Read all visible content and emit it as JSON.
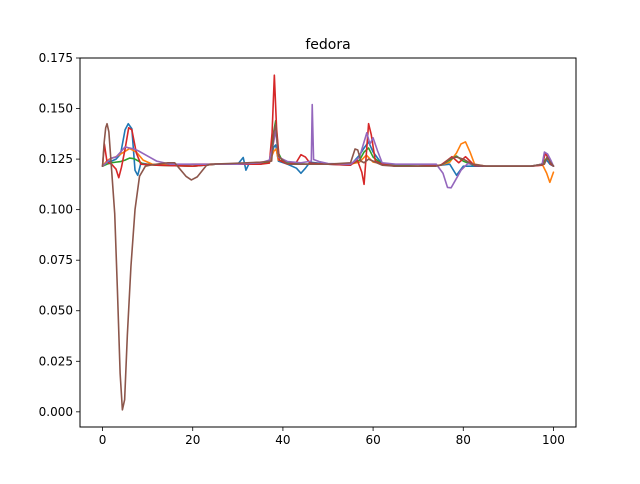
{
  "chart_data": {
    "type": "line",
    "title": "fedora",
    "xlabel": "",
    "ylabel": "",
    "xlim": [
      -5,
      105
    ],
    "ylim": [
      -0.0075,
      0.175
    ],
    "xticks": [
      0,
      20,
      40,
      60,
      80,
      100
    ],
    "xtick_labels": [
      "0",
      "20",
      "40",
      "60",
      "80",
      "100"
    ],
    "yticks": [
      0.0,
      0.025,
      0.05,
      0.075,
      0.1,
      0.125,
      0.15,
      0.175
    ],
    "ytick_labels": [
      "0.000",
      "0.025",
      "0.050",
      "0.075",
      "0.100",
      "0.125",
      "0.150",
      "0.175"
    ],
    "grid": false,
    "legend": "none",
    "series": [
      {
        "color": "#1f77b4",
        "points": [
          [
            0,
            0.1215
          ],
          [
            1,
            0.1235
          ],
          [
            2,
            0.124
          ],
          [
            3,
            0.125
          ],
          [
            4,
            0.1275
          ],
          [
            5,
            0.1395
          ],
          [
            5.7,
            0.1425
          ],
          [
            6.5,
            0.14
          ],
          [
            7.2,
            0.1195
          ],
          [
            7.8,
            0.117
          ],
          [
            8.5,
            0.123
          ],
          [
            10,
            0.1225
          ],
          [
            15,
            0.122
          ],
          [
            20,
            0.1215
          ],
          [
            25,
            0.1225
          ],
          [
            30,
            0.1225
          ],
          [
            31.2,
            0.1258
          ],
          [
            31.8,
            0.1195
          ],
          [
            32.5,
            0.1228
          ],
          [
            35,
            0.1225
          ],
          [
            37,
            0.124
          ],
          [
            38,
            0.131
          ],
          [
            38.4,
            0.132
          ],
          [
            39,
            0.124
          ],
          [
            41,
            0.1225
          ],
          [
            43,
            0.1205
          ],
          [
            44,
            0.118
          ],
          [
            45,
            0.1205
          ],
          [
            46,
            0.1235
          ],
          [
            50,
            0.1225
          ],
          [
            55,
            0.122
          ],
          [
            57,
            0.127
          ],
          [
            58,
            0.1305
          ],
          [
            59,
            0.1335
          ],
          [
            60,
            0.1285
          ],
          [
            62,
            0.1225
          ],
          [
            65,
            0.1215
          ],
          [
            70,
            0.1215
          ],
          [
            75,
            0.122
          ],
          [
            77,
            0.1225
          ],
          [
            78.5,
            0.117
          ],
          [
            80,
            0.1215
          ],
          [
            85,
            0.1215
          ],
          [
            90,
            0.1215
          ],
          [
            95,
            0.1215
          ],
          [
            97,
            0.122
          ],
          [
            98.5,
            0.1245
          ],
          [
            99.2,
            0.1225
          ],
          [
            100,
            0.1215
          ]
        ]
      },
      {
        "color": "#ff7f0e",
        "points": [
          [
            0,
            0.1215
          ],
          [
            0.7,
            0.1235
          ],
          [
            1.5,
            0.125
          ],
          [
            3,
            0.1262
          ],
          [
            4.5,
            0.1282
          ],
          [
            6,
            0.1302
          ],
          [
            7.5,
            0.1285
          ],
          [
            9,
            0.1245
          ],
          [
            11,
            0.1225
          ],
          [
            15,
            0.122
          ],
          [
            20,
            0.1225
          ],
          [
            25,
            0.1225
          ],
          [
            30,
            0.1225
          ],
          [
            35,
            0.1225
          ],
          [
            37,
            0.1235
          ],
          [
            38,
            0.129
          ],
          [
            38.5,
            0.13
          ],
          [
            39,
            0.1245
          ],
          [
            42,
            0.1225
          ],
          [
            45,
            0.1225
          ],
          [
            50,
            0.1225
          ],
          [
            55,
            0.1225
          ],
          [
            57,
            0.1235
          ],
          [
            58.5,
            0.127
          ],
          [
            60,
            0.1235
          ],
          [
            65,
            0.1215
          ],
          [
            70,
            0.1215
          ],
          [
            75,
            0.122
          ],
          [
            77,
            0.1235
          ],
          [
            78.5,
            0.128
          ],
          [
            79.5,
            0.1325
          ],
          [
            80.5,
            0.1335
          ],
          [
            81.5,
            0.1285
          ],
          [
            82.5,
            0.1225
          ],
          [
            85,
            0.1215
          ],
          [
            90,
            0.1215
          ],
          [
            95,
            0.1215
          ],
          [
            97.5,
            0.1225
          ],
          [
            98.5,
            0.118
          ],
          [
            99.2,
            0.1135
          ],
          [
            100,
            0.1185
          ]
        ]
      },
      {
        "color": "#2ca02c",
        "points": [
          [
            0,
            0.1215
          ],
          [
            1,
            0.1225
          ],
          [
            2,
            0.1232
          ],
          [
            3,
            0.1235
          ],
          [
            4,
            0.1238
          ],
          [
            5,
            0.1245
          ],
          [
            6,
            0.1255
          ],
          [
            7,
            0.1252
          ],
          [
            8,
            0.124
          ],
          [
            9,
            0.1225
          ],
          [
            12,
            0.122
          ],
          [
            20,
            0.1215
          ],
          [
            25,
            0.1225
          ],
          [
            30,
            0.1225
          ],
          [
            35,
            0.1225
          ],
          [
            37,
            0.1235
          ],
          [
            38,
            0.139
          ],
          [
            38.4,
            0.144
          ],
          [
            39,
            0.128
          ],
          [
            40,
            0.1235
          ],
          [
            45,
            0.1225
          ],
          [
            50,
            0.1225
          ],
          [
            55,
            0.1225
          ],
          [
            57,
            0.1245
          ],
          [
            58,
            0.1285
          ],
          [
            59,
            0.1305
          ],
          [
            60,
            0.126
          ],
          [
            62,
            0.1225
          ],
          [
            65,
            0.122
          ],
          [
            70,
            0.1215
          ],
          [
            75,
            0.122
          ],
          [
            77,
            0.1245
          ],
          [
            78.5,
            0.1265
          ],
          [
            80,
            0.124
          ],
          [
            82,
            0.1222
          ],
          [
            85,
            0.1215
          ],
          [
            90,
            0.1215
          ],
          [
            95,
            0.1215
          ],
          [
            97.5,
            0.1225
          ],
          [
            98.5,
            0.1255
          ],
          [
            99.3,
            0.124
          ],
          [
            100,
            0.1215
          ]
        ]
      },
      {
        "color": "#d62728",
        "points": [
          [
            0,
            0.1215
          ],
          [
            0.4,
            0.1325
          ],
          [
            1,
            0.1235
          ],
          [
            2,
            0.1225
          ],
          [
            3,
            0.12
          ],
          [
            3.6,
            0.1158
          ],
          [
            4.2,
            0.121
          ],
          [
            5,
            0.13
          ],
          [
            5.8,
            0.1405
          ],
          [
            6.5,
            0.1395
          ],
          [
            7.5,
            0.128
          ],
          [
            8.5,
            0.1225
          ],
          [
            12,
            0.122
          ],
          [
            20,
            0.1215
          ],
          [
            25,
            0.1225
          ],
          [
            30,
            0.1225
          ],
          [
            35,
            0.1225
          ],
          [
            37,
            0.123
          ],
          [
            37.6,
            0.138
          ],
          [
            38.1,
            0.1665
          ],
          [
            38.6,
            0.14
          ],
          [
            39.2,
            0.1245
          ],
          [
            41,
            0.1225
          ],
          [
            43,
            0.1235
          ],
          [
            44,
            0.1272
          ],
          [
            45,
            0.126
          ],
          [
            46,
            0.123
          ],
          [
            50,
            0.1225
          ],
          [
            55,
            0.122
          ],
          [
            56.5,
            0.1245
          ],
          [
            57.5,
            0.1185
          ],
          [
            58,
            0.1125
          ],
          [
            58.5,
            0.1275
          ],
          [
            59,
            0.1425
          ],
          [
            59.6,
            0.137
          ],
          [
            60.5,
            0.124
          ],
          [
            62,
            0.1225
          ],
          [
            65,
            0.1215
          ],
          [
            70,
            0.1215
          ],
          [
            75,
            0.122
          ],
          [
            76.5,
            0.1245
          ],
          [
            77.5,
            0.1262
          ],
          [
            79,
            0.1232
          ],
          [
            80.5,
            0.1262
          ],
          [
            81.5,
            0.124
          ],
          [
            82.5,
            0.1218
          ],
          [
            85,
            0.1215
          ],
          [
            90,
            0.1215
          ],
          [
            95,
            0.1215
          ],
          [
            97.5,
            0.122
          ],
          [
            98.2,
            0.128
          ],
          [
            98.8,
            0.1255
          ],
          [
            99.4,
            0.1225
          ],
          [
            100,
            0.1215
          ]
        ]
      },
      {
        "color": "#9467bd",
        "points": [
          [
            0,
            0.1215
          ],
          [
            1,
            0.1235
          ],
          [
            2,
            0.1255
          ],
          [
            3,
            0.126
          ],
          [
            4,
            0.1285
          ],
          [
            5,
            0.131
          ],
          [
            6,
            0.1305
          ],
          [
            7,
            0.13
          ],
          [
            8,
            0.129
          ],
          [
            10,
            0.1265
          ],
          [
            12,
            0.124
          ],
          [
            15,
            0.1225
          ],
          [
            20,
            0.1225
          ],
          [
            25,
            0.1225
          ],
          [
            30,
            0.1225
          ],
          [
            35,
            0.1232
          ],
          [
            37,
            0.1245
          ],
          [
            38,
            0.134
          ],
          [
            38.4,
            0.1395
          ],
          [
            39,
            0.126
          ],
          [
            41,
            0.1238
          ],
          [
            44,
            0.1232
          ],
          [
            46.3,
            0.124
          ],
          [
            46.5,
            0.152
          ],
          [
            46.8,
            0.1248
          ],
          [
            48,
            0.1238
          ],
          [
            50,
            0.1228
          ],
          [
            55,
            0.1225
          ],
          [
            57,
            0.126
          ],
          [
            58,
            0.1335
          ],
          [
            58.6,
            0.138
          ],
          [
            59.3,
            0.1325
          ],
          [
            60,
            0.1355
          ],
          [
            61,
            0.129
          ],
          [
            62,
            0.1232
          ],
          [
            65,
            0.1225
          ],
          [
            70,
            0.1225
          ],
          [
            74,
            0.1225
          ],
          [
            75.5,
            0.118
          ],
          [
            76.5,
            0.111
          ],
          [
            77.3,
            0.1108
          ],
          [
            78.5,
            0.1155
          ],
          [
            79.5,
            0.1195
          ],
          [
            81,
            0.1228
          ],
          [
            85,
            0.1215
          ],
          [
            90,
            0.1215
          ],
          [
            95,
            0.1215
          ],
          [
            97.5,
            0.1225
          ],
          [
            98,
            0.1285
          ],
          [
            98.7,
            0.1275
          ],
          [
            99.4,
            0.1245
          ],
          [
            100,
            0.1215
          ]
        ]
      },
      {
        "color": "#8c564b",
        "points": [
          [
            0,
            0.1215
          ],
          [
            0.35,
            0.133
          ],
          [
            0.7,
            0.1405
          ],
          [
            1.0,
            0.1425
          ],
          [
            1.4,
            0.1385
          ],
          [
            2.0,
            0.12
          ],
          [
            2.7,
            0.098
          ],
          [
            3.3,
            0.06
          ],
          [
            3.9,
            0.019
          ],
          [
            4.4,
            0.001
          ],
          [
            4.9,
            0.006
          ],
          [
            5.5,
            0.038
          ],
          [
            6.3,
            0.072
          ],
          [
            7.2,
            0.1
          ],
          [
            8.2,
            0.1165
          ],
          [
            9.5,
            0.1215
          ],
          [
            11,
            0.1222
          ],
          [
            13,
            0.1228
          ],
          [
            14.5,
            0.1232
          ],
          [
            16,
            0.1232
          ],
          [
            17,
            0.1205
          ],
          [
            18.5,
            0.1165
          ],
          [
            19.7,
            0.1147
          ],
          [
            21,
            0.1162
          ],
          [
            22,
            0.119
          ],
          [
            23,
            0.1218
          ],
          [
            24,
            0.1225
          ],
          [
            28,
            0.1228
          ],
          [
            32,
            0.1232
          ],
          [
            35,
            0.1235
          ],
          [
            37.5,
            0.124
          ],
          [
            38,
            0.1385
          ],
          [
            38.4,
            0.142
          ],
          [
            39,
            0.1265
          ],
          [
            41,
            0.1225
          ],
          [
            44,
            0.1225
          ],
          [
            47,
            0.1225
          ],
          [
            50,
            0.1225
          ],
          [
            55,
            0.1232
          ],
          [
            56,
            0.13
          ],
          [
            56.6,
            0.1295
          ],
          [
            57.3,
            0.124
          ],
          [
            58,
            0.1232
          ],
          [
            59,
            0.125
          ],
          [
            60,
            0.124
          ],
          [
            62,
            0.122
          ],
          [
            65,
            0.1215
          ],
          [
            70,
            0.1215
          ],
          [
            74,
            0.1215
          ],
          [
            75.5,
            0.1225
          ],
          [
            77,
            0.1252
          ],
          [
            78.5,
            0.126
          ],
          [
            80,
            0.125
          ],
          [
            82,
            0.1225
          ],
          [
            85,
            0.1215
          ],
          [
            90,
            0.1215
          ],
          [
            95,
            0.1215
          ],
          [
            98,
            0.1225
          ],
          [
            98.6,
            0.126
          ],
          [
            99.3,
            0.1235
          ],
          [
            100,
            0.1215
          ]
        ]
      }
    ]
  }
}
